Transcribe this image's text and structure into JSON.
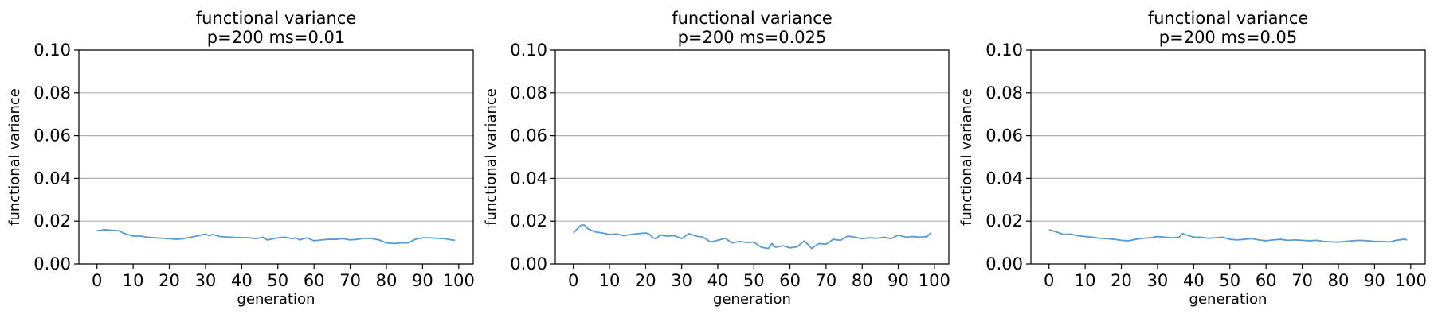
{
  "chart_data": [
    {
      "type": "line",
      "title": "functional variance",
      "subtitle": "p=200 ms=0.01",
      "xlabel": "generation",
      "ylabel": "functional variance",
      "xlim": [
        -5,
        104
      ],
      "ylim": [
        0,
        0.1
      ],
      "xticks": [
        0,
        10,
        20,
        30,
        40,
        50,
        60,
        70,
        80,
        90,
        100
      ],
      "yticks": [
        0.0,
        0.02,
        0.04,
        0.06,
        0.08,
        0.1
      ],
      "ytick_labels": [
        "0.00",
        "0.02",
        "0.04",
        "0.06",
        "0.08",
        "0.10"
      ],
      "grid": "y",
      "series": [
        {
          "color": "#5a9bd0",
          "x": [
            0,
            2,
            4,
            6,
            8,
            10,
            12,
            14,
            16,
            18,
            20,
            22,
            24,
            26,
            28,
            30,
            31,
            32,
            34,
            36,
            38,
            40,
            42,
            44,
            46,
            47,
            48,
            50,
            52,
            54,
            55,
            56,
            58,
            60,
            62,
            64,
            66,
            68,
            70,
            72,
            74,
            76,
            78,
            80,
            82,
            84,
            86,
            88,
            90,
            92,
            94,
            96,
            98,
            99
          ],
          "y": [
            0.0155,
            0.016,
            0.0158,
            0.0155,
            0.014,
            0.013,
            0.013,
            0.0125,
            0.0122,
            0.012,
            0.0118,
            0.0115,
            0.0118,
            0.0125,
            0.0132,
            0.014,
            0.0132,
            0.0138,
            0.0128,
            0.0126,
            0.0124,
            0.0123,
            0.0122,
            0.0118,
            0.0125,
            0.0112,
            0.0115,
            0.0122,
            0.0125,
            0.0118,
            0.0122,
            0.0112,
            0.0122,
            0.0108,
            0.0112,
            0.0115,
            0.0115,
            0.0118,
            0.0112,
            0.0115,
            0.012,
            0.0118,
            0.0112,
            0.0098,
            0.0095,
            0.0098,
            0.0098,
            0.0115,
            0.0122,
            0.0122,
            0.012,
            0.0118,
            0.0112,
            0.011
          ]
        }
      ]
    },
    {
      "type": "line",
      "title": "functional variance",
      "subtitle": "p=200 ms=0.025",
      "xlabel": "generation",
      "ylabel": "functional variance",
      "xlim": [
        -5,
        104
      ],
      "ylim": [
        0,
        0.1
      ],
      "xticks": [
        0,
        10,
        20,
        30,
        40,
        50,
        60,
        70,
        80,
        90,
        100
      ],
      "yticks": [
        0.0,
        0.02,
        0.04,
        0.06,
        0.08,
        0.1
      ],
      "ytick_labels": [
        "0.00",
        "0.02",
        "0.04",
        "0.06",
        "0.08",
        "0.10"
      ],
      "grid": "y",
      "series": [
        {
          "color": "#5a9bd0",
          "x": [
            0,
            2,
            3,
            4,
            6,
            8,
            10,
            12,
            14,
            16,
            18,
            20,
            21,
            22,
            23,
            24,
            26,
            28,
            30,
            32,
            34,
            36,
            38,
            40,
            42,
            44,
            46,
            48,
            50,
            52,
            54,
            55,
            56,
            58,
            60,
            62,
            64,
            66,
            68,
            70,
            72,
            74,
            76,
            78,
            80,
            82,
            84,
            86,
            88,
            90,
            92,
            94,
            96,
            98,
            99
          ],
          "y": [
            0.0145,
            0.018,
            0.0182,
            0.0165,
            0.015,
            0.0145,
            0.0138,
            0.014,
            0.0132,
            0.0138,
            0.0142,
            0.0145,
            0.014,
            0.0122,
            0.0118,
            0.0135,
            0.013,
            0.0132,
            0.0118,
            0.0142,
            0.013,
            0.0125,
            0.0102,
            0.011,
            0.012,
            0.0098,
            0.0105,
            0.01,
            0.0102,
            0.0078,
            0.0072,
            0.0095,
            0.0078,
            0.0085,
            0.0075,
            0.008,
            0.0108,
            0.0072,
            0.0095,
            0.0092,
            0.0115,
            0.011,
            0.013,
            0.0125,
            0.0118,
            0.0122,
            0.012,
            0.0125,
            0.0118,
            0.0135,
            0.0125,
            0.0128,
            0.0125,
            0.0128,
            0.0145
          ]
        }
      ]
    },
    {
      "type": "line",
      "title": "functional variance",
      "subtitle": "p=200 ms=0.05",
      "xlabel": "generation",
      "ylabel": "functional variance",
      "xlim": [
        -5,
        104
      ],
      "ylim": [
        0,
        0.1
      ],
      "xticks": [
        0,
        10,
        20,
        30,
        40,
        50,
        60,
        70,
        80,
        90,
        100
      ],
      "yticks": [
        0.0,
        0.02,
        0.04,
        0.06,
        0.08,
        0.1
      ],
      "ytick_labels": [
        "0.00",
        "0.02",
        "0.04",
        "0.06",
        "0.08",
        "0.10"
      ],
      "grid": "y",
      "series": [
        {
          "color": "#5a9bd0",
          "x": [
            0,
            2,
            4,
            6,
            8,
            10,
            12,
            14,
            16,
            18,
            20,
            22,
            24,
            26,
            28,
            30,
            32,
            34,
            36,
            37,
            38,
            40,
            42,
            44,
            46,
            48,
            50,
            52,
            54,
            56,
            58,
            60,
            62,
            64,
            66,
            68,
            70,
            72,
            74,
            76,
            78,
            80,
            82,
            84,
            86,
            88,
            90,
            92,
            94,
            96,
            98,
            99
          ],
          "y": [
            0.016,
            0.015,
            0.0138,
            0.014,
            0.0132,
            0.0128,
            0.0125,
            0.012,
            0.0118,
            0.0115,
            0.011,
            0.0108,
            0.0115,
            0.012,
            0.0122,
            0.0128,
            0.0125,
            0.0122,
            0.0125,
            0.0142,
            0.0135,
            0.0125,
            0.0125,
            0.012,
            0.0122,
            0.0125,
            0.0115,
            0.0112,
            0.0115,
            0.0118,
            0.0112,
            0.0108,
            0.0112,
            0.0115,
            0.011,
            0.0112,
            0.011,
            0.0108,
            0.011,
            0.0105,
            0.0103,
            0.0102,
            0.0105,
            0.0108,
            0.011,
            0.0108,
            0.0105,
            0.0105,
            0.0102,
            0.011,
            0.0115,
            0.0113
          ]
        }
      ]
    }
  ]
}
